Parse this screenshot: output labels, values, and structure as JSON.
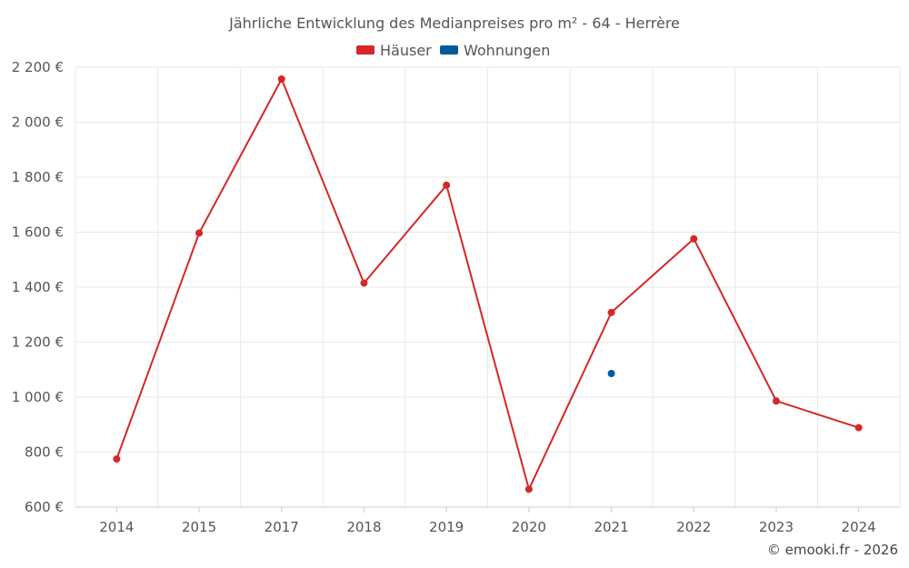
{
  "chart_data": {
    "type": "line",
    "title": "Jährliche Entwicklung des Medianpreises pro m² - 64 - Herrère",
    "categories": [
      "2014",
      "2015",
      "2017",
      "2018",
      "2019",
      "2020",
      "2021",
      "2022",
      "2023",
      "2024"
    ],
    "series": [
      {
        "name": "Häuser",
        "color": "#d62728",
        "values": [
          775,
          1597,
          2157,
          1415,
          1771,
          665,
          1308,
          1576,
          986,
          889
        ]
      },
      {
        "name": "Wohnungen",
        "color": "#005a9c",
        "values": [
          null,
          null,
          null,
          null,
          null,
          null,
          1086,
          null,
          null,
          null
        ]
      }
    ],
    "y_ticks": [
      "600 €",
      "800 €",
      "1 000 €",
      "1 200 €",
      "1 400 €",
      "1 600 €",
      "1 800 €",
      "2 000 €",
      "2 200 €"
    ],
    "ylim": [
      600,
      2200
    ],
    "grid": true,
    "legend_position": "top-center",
    "credit": "© emooki.fr - 2026"
  }
}
